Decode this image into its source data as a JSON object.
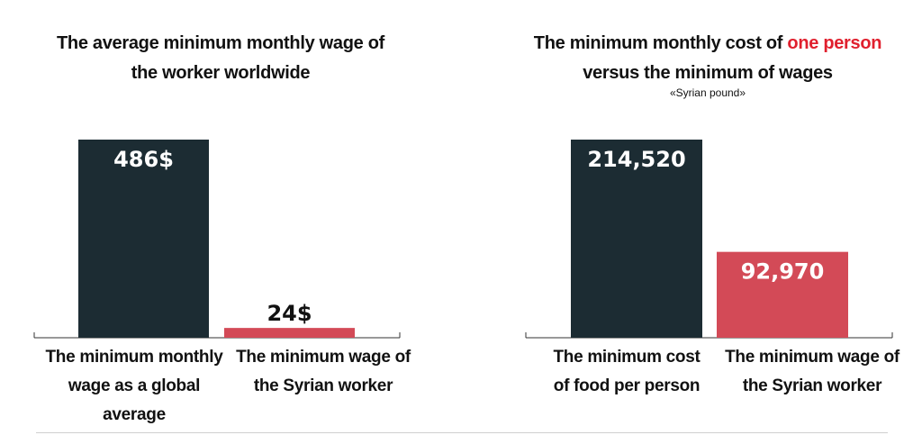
{
  "chart_data": [
    {
      "type": "bar",
      "title_line1": "The average minimum monthly wage of",
      "title_line2": "the worker worldwide",
      "categories": [
        "The minimum monthly wage as a global average",
        "The minimum wage of the Syrian worker"
      ],
      "values": [
        486,
        24
      ],
      "value_labels": [
        "486$",
        "24$"
      ],
      "ylim": [
        0,
        486
      ],
      "colors": [
        "#1c2c33",
        "#d34a57"
      ],
      "category_lines": [
        [
          "The minimum monthly",
          "wage as a global",
          "average"
        ],
        [
          "The minimum wage of",
          "the Syrian worker"
        ]
      ]
    },
    {
      "type": "bar",
      "title_line1_pre": "The minimum monthly cost of ",
      "title_line1_hl": "one person",
      "title_line2": "versus the minimum of wages",
      "subtitle": "«Syrian pound»",
      "categories": [
        "The minimum cost of food per person",
        "The minimum wage of the Syrian worker"
      ],
      "values": [
        214520,
        92970
      ],
      "value_labels": [
        "214,520",
        "92,970"
      ],
      "ylim": [
        0,
        214520
      ],
      "colors": [
        "#1c2c33",
        "#d34a57"
      ],
      "category_lines": [
        [
          "The  minimum  cost",
          "of food per person"
        ],
        [
          "The minimum wage of",
          "the Syrian worker"
        ]
      ]
    }
  ]
}
